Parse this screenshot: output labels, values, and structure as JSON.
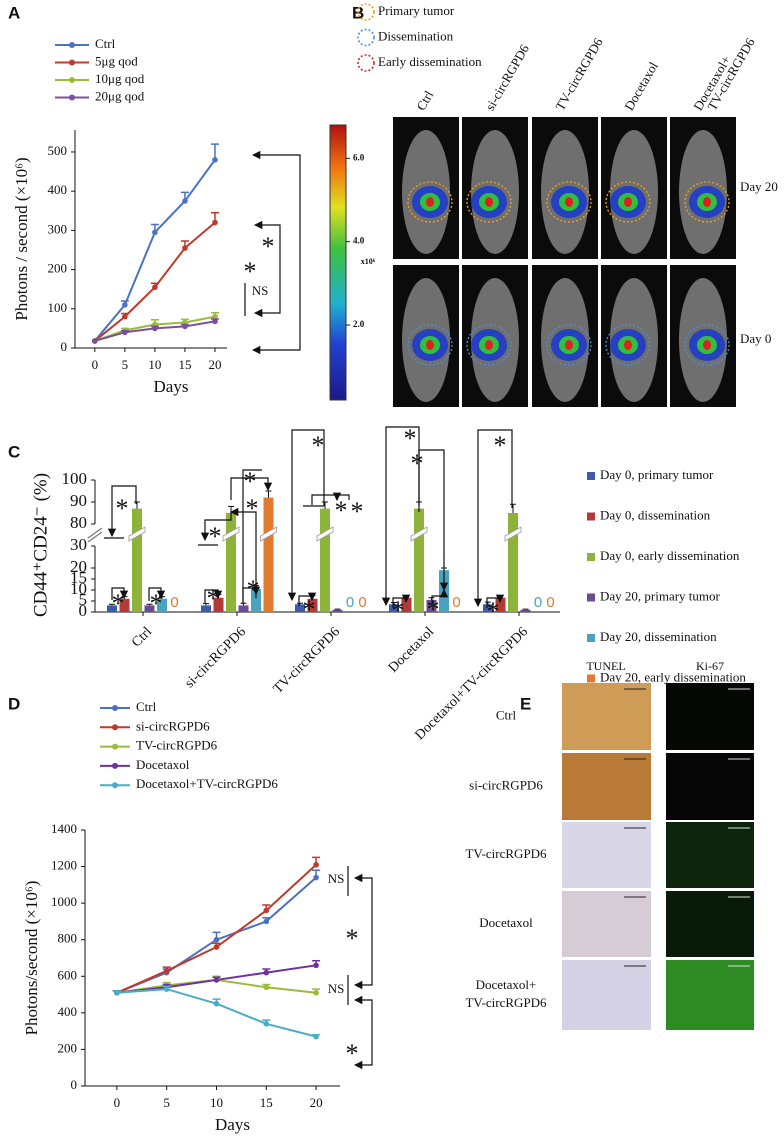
{
  "panel_labels": [
    "A",
    "B",
    "C",
    "D",
    "E"
  ],
  "chart_data": [
    {
      "type": "line",
      "x_label": "Days",
      "y_label": "Photons / second (×10⁶)",
      "x": [
        0,
        5,
        10,
        15,
        20
      ],
      "xlim": [
        -3.3,
        22
      ],
      "xticks": [
        0,
        5,
        10,
        15,
        20
      ],
      "ylim": [
        0,
        556
      ],
      "yticks": [
        0,
        100,
        200,
        300,
        400,
        500
      ],
      "series": [
        {
          "name": "Ctrl",
          "color": "#4a72c6",
          "values": [
            18,
            110,
            295,
            375,
            480
          ],
          "errors": [
            0,
            10,
            20,
            22,
            40
          ]
        },
        {
          "name": "5μg qod",
          "color": "#c0392b",
          "values": [
            18,
            80,
            155,
            255,
            320
          ],
          "errors": [
            0,
            8,
            10,
            18,
            25
          ]
        },
        {
          "name": "10μg qod",
          "color": "#9bbb3a",
          "values": [
            18,
            45,
            60,
            65,
            80
          ],
          "errors": [
            0,
            5,
            12,
            8,
            10
          ]
        },
        {
          "name": "20μg qod",
          "color": "#7b4fa0",
          "values": [
            18,
            40,
            50,
            55,
            68
          ],
          "errors": [
            0,
            4,
            5,
            5,
            6
          ]
        }
      ],
      "annotations": [
        "*",
        "*",
        "NS"
      ]
    },
    {
      "type": "bar",
      "y_label": "CD44⁺CD24⁻ (%)",
      "categories": [
        "Ctrl",
        "si-circRGPD6",
        "TV-circRGPD6",
        "Docetaxol",
        "Docetaxol+TV-circRGPD6"
      ],
      "ylim": [
        0,
        100
      ],
      "ybreak": [
        30,
        80
      ],
      "yticks": [
        0,
        5,
        10,
        15,
        20,
        30,
        80,
        90,
        100
      ],
      "series": [
        {
          "name": "Day 0, primary tumor",
          "color": "#3c5ba8",
          "values": [
            3,
            3,
            3.5,
            3.5,
            3.5
          ],
          "errors": [
            0.5,
            0.8,
            0.5,
            0.8,
            1
          ]
        },
        {
          "name": "Day 0, dissemination",
          "color": "#b33a36",
          "values": [
            6,
            6.5,
            6,
            6.5,
            6.5
          ],
          "errors": [
            1,
            1.5,
            1.5,
            1,
            1
          ]
        },
        {
          "name": "Day 0, early dissemination",
          "color": "#8db33a",
          "values": [
            87,
            85,
            87,
            87,
            85
          ],
          "errors": [
            3,
            3,
            3,
            3,
            4
          ]
        },
        {
          "name": "Day 20, primary tumor",
          "color": "#6b4a96",
          "values": [
            3,
            3,
            1,
            5.5,
            1
          ],
          "errors": [
            0.5,
            1,
            0.3,
            1,
            0.3
          ]
        },
        {
          "name": "Day 20, dissemination",
          "color": "#4aa3bf",
          "values": [
            6,
            10.5,
            0,
            19,
            0
          ],
          "errors": [
            1,
            1.5,
            0,
            1,
            0
          ]
        },
        {
          "name": "Day 20, early dissemination",
          "color": "#e07b2e",
          "values": [
            0,
            92,
            0,
            0,
            0
          ],
          "errors": [
            0,
            3,
            0,
            0,
            0
          ]
        }
      ],
      "annotations": [
        "*",
        "*",
        "*",
        "*",
        "*",
        "*",
        "*",
        "*",
        "*",
        "*",
        "*",
        "*",
        "*",
        "*",
        "*",
        "*",
        "*",
        "*"
      ]
    },
    {
      "type": "line",
      "x_label": "Days",
      "y_label": "Photons/second (×10⁶)",
      "x": [
        0,
        5,
        10,
        15,
        20
      ],
      "xlim": [
        -3.2,
        22.4
      ],
      "xticks": [
        0,
        5,
        10,
        15,
        20
      ],
      "ylim": [
        0,
        1400
      ],
      "yticks": [
        0,
        200,
        400,
        600,
        800,
        1000,
        1200,
        1400
      ],
      "series": [
        {
          "name": "Ctrl",
          "color": "#4a6fc4",
          "values": [
            510,
            620,
            800,
            900,
            1140
          ],
          "errors": [
            10,
            20,
            40,
            20,
            40
          ]
        },
        {
          "name": "si-circRGPD6",
          "color": "#c0392b",
          "values": [
            510,
            630,
            760,
            960,
            1210
          ],
          "errors": [
            10,
            20,
            20,
            30,
            40
          ]
        },
        {
          "name": "TV-circRGPD6",
          "color": "#9bbb3a",
          "values": [
            510,
            550,
            580,
            540,
            510
          ],
          "errors": [
            10,
            15,
            20,
            15,
            20
          ]
        },
        {
          "name": "Docetaxol",
          "color": "#7030a0",
          "values": [
            510,
            540,
            580,
            620,
            660
          ],
          "errors": [
            10,
            15,
            15,
            20,
            25
          ]
        },
        {
          "name": "Docetaxol+TV-circRGPD6",
          "color": "#4bacc6",
          "values": [
            510,
            530,
            450,
            340,
            270
          ],
          "errors": [
            10,
            15,
            25,
            20,
            10
          ]
        }
      ],
      "annotations": [
        "NS",
        "*",
        "NS",
        "*"
      ]
    }
  ],
  "panel_B": {
    "legend": [
      "Primary tumor",
      "Dissemination",
      "Early dissemination"
    ],
    "columns": [
      [
        "Ctrl"
      ],
      [
        "si-circRGPD6"
      ],
      [
        "TV-circRGPD6"
      ],
      [
        "Docetaxol"
      ],
      [
        "Docetaxol+",
        "TV-circRGPD6"
      ]
    ],
    "rows": [
      "Day 20",
      "Day 0"
    ],
    "colorbar": {
      "lim": [
        0.2,
        6.8
      ],
      "ticks": [
        {
          "value": 6,
          "label": "6.0"
        },
        {
          "value": 4,
          "label": "4.0"
        },
        {
          "value": 2,
          "label": "2.0"
        }
      ],
      "unit": "x10⁶"
    }
  },
  "panel_E": {
    "columns": [
      "TUNEL",
      "Ki-67"
    ],
    "rows": [
      [
        "Ctrl"
      ],
      [
        "si-circRGPD6"
      ],
      [
        "TV-circRGPD6"
      ],
      [
        "Docetaxol"
      ],
      [
        "Docetaxol+",
        "TV-circRGPD6"
      ]
    ]
  }
}
